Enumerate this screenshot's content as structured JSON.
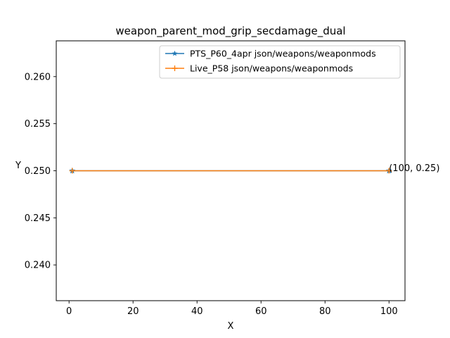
{
  "chart_data": {
    "type": "line",
    "title": "weapon_parent_mod_grip_secdamage_dual",
    "xlabel": "X",
    "ylabel": "Y",
    "xlim": [
      -4,
      105
    ],
    "ylim": [
      0.2362,
      0.2638
    ],
    "xticks": [
      0,
      20,
      40,
      60,
      80,
      100
    ],
    "xtick_labels": [
      "0",
      "20",
      "40",
      "60",
      "80",
      "100"
    ],
    "yticks": [
      0.24,
      0.245,
      0.25,
      0.255,
      0.26
    ],
    "ytick_labels": [
      "0.240",
      "0.245",
      "0.250",
      "0.255",
      "0.260"
    ],
    "grid": false,
    "legend_position": "top-right",
    "series": [
      {
        "name": "PTS_P60_4apr json/weapons/weaponmods",
        "color": "#1f77b4",
        "marker": "star",
        "x": [
          1,
          100
        ],
        "y": [
          0.25,
          0.25
        ]
      },
      {
        "name": "Live_P58 json/weapons/weaponmods",
        "color": "#ff7f0e",
        "marker": "plus",
        "x": [
          1,
          100
        ],
        "y": [
          0.25,
          0.25
        ]
      }
    ],
    "annotations": [
      {
        "text": "(100, 0.25)",
        "x": 100,
        "y": 0.25
      }
    ]
  }
}
